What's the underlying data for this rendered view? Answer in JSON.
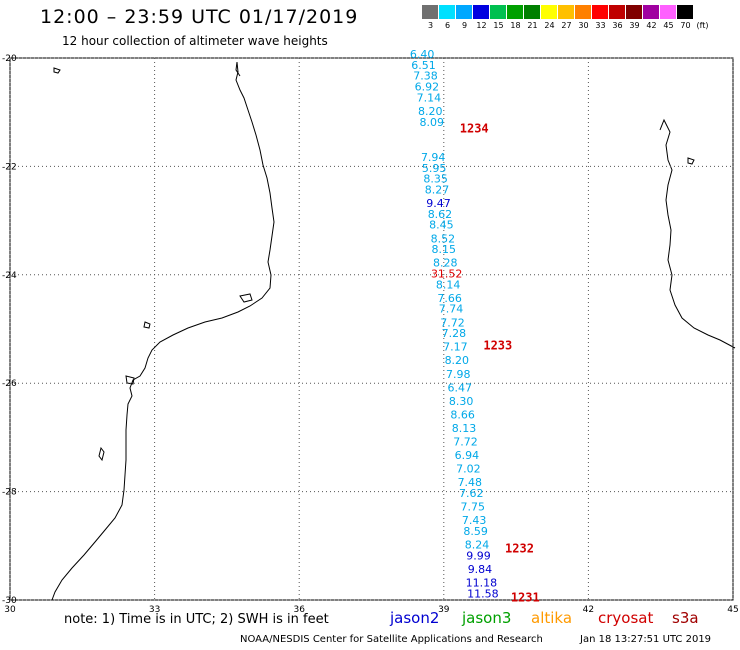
{
  "title": "12:00 – 23:59 UTC 01/17/2019",
  "subtitle": "12 hour collection of altimeter wave heights",
  "scale": {
    "labels": [
      "3",
      "6",
      "9",
      "12",
      "15",
      "18",
      "21",
      "24",
      "27",
      "30",
      "33",
      "36",
      "39",
      "42",
      "45",
      "70",
      "(ft)"
    ],
    "colors": [
      "#707070",
      "#00e0ff",
      "#00a8ff",
      "#0000e0",
      "#00c050",
      "#00a000",
      "#008000",
      "#ffff00",
      "#ffc000",
      "#ff8000",
      "#ff0000",
      "#c00000",
      "#800000",
      "#a000a0",
      "#ff60ff",
      "#000000"
    ]
  },
  "map": {
    "lat_ticks": [
      "-20",
      "-22",
      "-24",
      "-26",
      "-28",
      "-30"
    ],
    "lon_ticks": [
      "30",
      "33",
      "36",
      "39",
      "42",
      "45"
    ],
    "tracks": [
      {
        "label": "1234",
        "label_lat": -21.3,
        "points": [
          {
            "lat": -20.0,
            "lon": 38.55,
            "v": "6.40"
          },
          {
            "lat": -20.2,
            "lon": 38.58,
            "v": "6.51"
          },
          {
            "lat": -20.4,
            "lon": 38.62,
            "v": "7.38"
          },
          {
            "lat": -20.6,
            "lon": 38.65,
            "v": "6.92"
          },
          {
            "lat": -20.8,
            "lon": 38.69,
            "v": "7.14"
          },
          {
            "lat": -21.05,
            "lon": 38.72,
            "v": "8.20"
          },
          {
            "lat": -21.25,
            "lon": 38.75,
            "v": "8.09"
          }
        ]
      },
      {
        "label": "1233",
        "label_lat": -25.3,
        "points": [
          {
            "lat": -21.9,
            "lon": 38.78,
            "v": "7.94"
          },
          {
            "lat": -22.1,
            "lon": 38.8,
            "v": "5.95"
          },
          {
            "lat": -22.3,
            "lon": 38.83,
            "v": "8.35"
          },
          {
            "lat": -22.5,
            "lon": 38.86,
            "v": "8.27"
          },
          {
            "lat": -22.75,
            "lon": 38.89,
            "v": "9.47"
          },
          {
            "lat": -22.95,
            "lon": 38.92,
            "v": "8.62"
          },
          {
            "lat": -23.15,
            "lon": 38.95,
            "v": "8.45"
          },
          {
            "lat": -23.4,
            "lon": 38.98,
            "v": "8.52"
          },
          {
            "lat": -23.6,
            "lon": 39.0,
            "v": "8.15"
          },
          {
            "lat": -23.85,
            "lon": 39.03,
            "v": "8.28"
          },
          {
            "lat": -24.05,
            "lon": 39.06,
            "v": "31.52"
          },
          {
            "lat": -24.25,
            "lon": 39.09,
            "v": "8.14"
          },
          {
            "lat": -24.5,
            "lon": 39.12,
            "v": "7.66"
          },
          {
            "lat": -24.7,
            "lon": 39.15,
            "v": "7.74"
          },
          {
            "lat": -24.95,
            "lon": 39.18,
            "v": "7.72"
          },
          {
            "lat": -25.15,
            "lon": 39.21,
            "v": "7.28"
          },
          {
            "lat": -25.4,
            "lon": 39.24,
            "v": "7.17"
          },
          {
            "lat": -25.65,
            "lon": 39.27,
            "v": "8.20"
          },
          {
            "lat": -25.9,
            "lon": 39.3,
            "v": "7.98"
          }
        ]
      },
      {
        "label": "1232",
        "label_lat": -29.05,
        "points": [
          {
            "lat": -26.15,
            "lon": 39.33,
            "v": "6.47"
          },
          {
            "lat": -26.4,
            "lon": 39.36,
            "v": "8.30"
          },
          {
            "lat": -26.65,
            "lon": 39.39,
            "v": "8.66"
          },
          {
            "lat": -26.9,
            "lon": 39.42,
            "v": "8.13"
          },
          {
            "lat": -27.15,
            "lon": 39.45,
            "v": "7.72"
          },
          {
            "lat": -27.4,
            "lon": 39.48,
            "v": "6.94"
          },
          {
            "lat": -27.65,
            "lon": 39.51,
            "v": "7.02"
          },
          {
            "lat": -27.9,
            "lon": 39.54,
            "v": "7.48"
          },
          {
            "lat": -28.1,
            "lon": 39.57,
            "v": "7.62"
          },
          {
            "lat": -28.35,
            "lon": 39.6,
            "v": "7.75"
          },
          {
            "lat": -28.6,
            "lon": 39.63,
            "v": "7.43"
          },
          {
            "lat": -28.8,
            "lon": 39.66,
            "v": "8.59"
          },
          {
            "lat": -29.05,
            "lon": 39.69,
            "v": "8.24"
          },
          {
            "lat": -29.25,
            "lon": 39.72,
            "v": "9.99"
          },
          {
            "lat": -29.5,
            "lon": 39.75,
            "v": "9.84"
          }
        ]
      },
      {
        "label": "1231",
        "label_lat": -29.95,
        "points": [
          {
            "lat": -29.75,
            "lon": 39.78,
            "v": "11.18"
          },
          {
            "lat": -29.95,
            "lon": 39.81,
            "v": "11.58"
          }
        ]
      }
    ]
  },
  "note": "note:  1) Time is in UTC;  2) SWH is in feet",
  "satellites": [
    {
      "name": "jason2",
      "color": "#0000d0"
    },
    {
      "name": "jason3",
      "color": "#00a000"
    },
    {
      "name": "altika",
      "color": "#ff9a00"
    },
    {
      "name": "cryosat",
      "color": "#d00000"
    },
    {
      "name": "s3a",
      "color": "#a00000"
    }
  ],
  "credit": "NOAA/NESDIS Center for Satellite Applications and Research",
  "stamp": "Jan 18 13:27:51 UTC 2019"
}
